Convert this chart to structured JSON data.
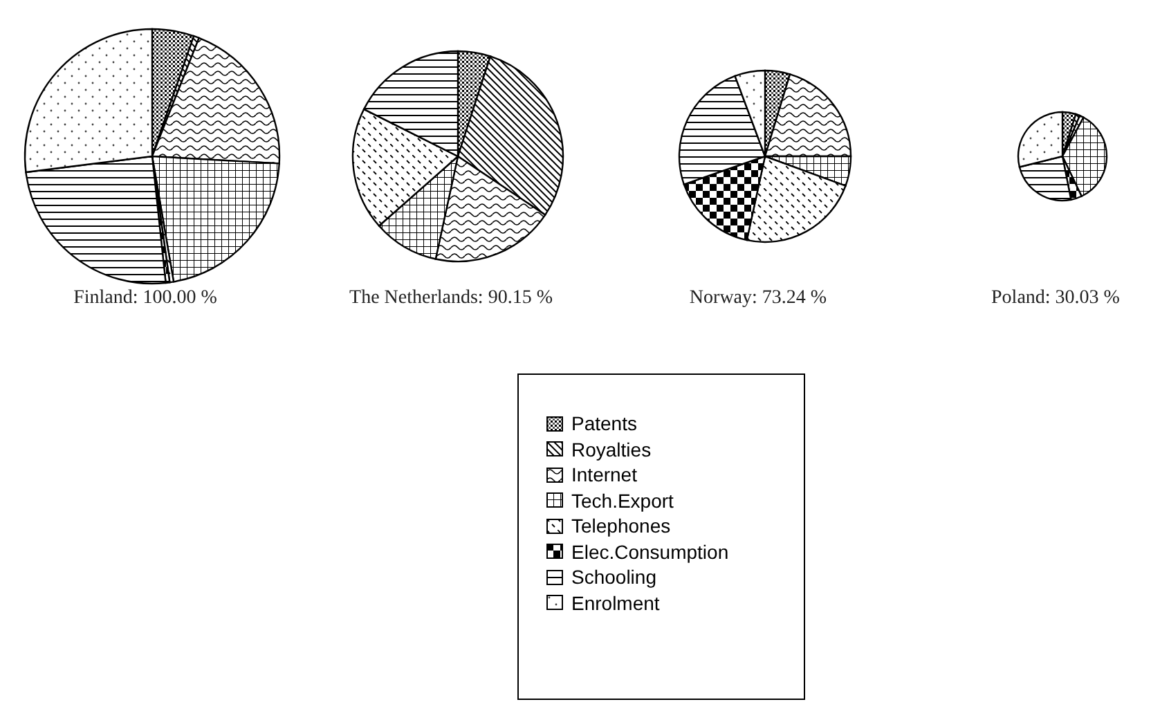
{
  "chart_data": [
    {
      "type": "pie",
      "xlabel": "Finland: 100.00 %",
      "categories": [
        "Patents",
        "Royalties",
        "Internet",
        "Tech.Export",
        "Telephones",
        "Elec.Consumption",
        "Schooling",
        "Enrolment"
      ],
      "values": [
        5.3,
        0.7,
        19.9,
        21.4,
        0.5,
        0.5,
        24.7,
        27.0
      ],
      "legend": "bottom"
    },
    {
      "type": "pie",
      "xlabel": "The Netherlands: 90.15 %",
      "categories": [
        null,
        null,
        null,
        null,
        null,
        null,
        null,
        null
      ],
      "values": [
        5.0,
        29.4,
        19.0,
        10.1,
        18.9,
        0,
        17.6,
        0
      ]
    },
    {
      "type": "pie",
      "xlabel": "Norway: 73.24 %",
      "categories": [
        null,
        null,
        null,
        null,
        null,
        null,
        null,
        null
      ],
      "values": [
        4.7,
        0,
        20.3,
        5.6,
        22.8,
        16.3,
        24.6,
        5.7
      ]
    },
    {
      "type": "pie",
      "xlabel": "Poland: 30.03 %",
      "categories": [
        null,
        null,
        null,
        null,
        null,
        null,
        null,
        null
      ],
      "values": [
        4.9,
        1.5,
        1.5,
        35.0,
        0,
        4.0,
        24.2,
        28.9
      ]
    }
  ]
}
